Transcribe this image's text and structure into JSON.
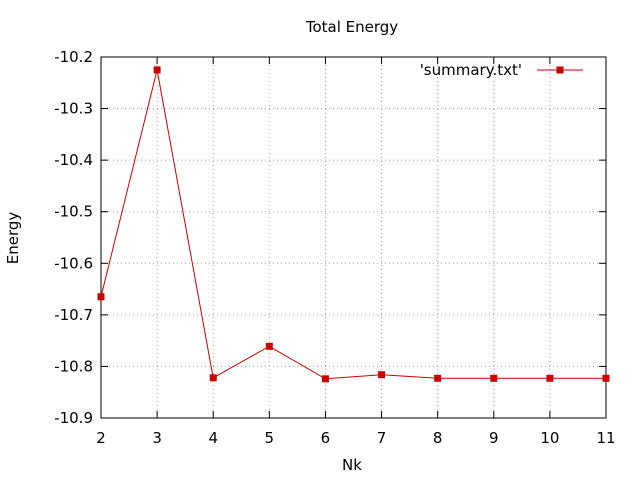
{
  "chart_data": {
    "type": "line",
    "title": "Total Energy",
    "xlabel": "Nk",
    "ylabel": "Energy",
    "xlim": [
      2,
      11
    ],
    "ylim": [
      -10.9,
      -10.2
    ],
    "xticks": [
      2,
      3,
      4,
      5,
      6,
      7,
      8,
      9,
      10,
      11
    ],
    "yticks": [
      -10.9,
      -10.8,
      -10.7,
      -10.6,
      -10.5,
      -10.4,
      -10.3,
      -10.2
    ],
    "grid": true,
    "legend_position": "top-right",
    "series": [
      {
        "name": "'summary.txt'",
        "color": "#cc0000",
        "marker": "square",
        "x": [
          2,
          3,
          4,
          5,
          6,
          7,
          8,
          9,
          10,
          11
        ],
        "y": [
          -10.665,
          -10.225,
          -10.822,
          -10.761,
          -10.824,
          -10.816,
          -10.823,
          -10.823,
          -10.823,
          -10.823
        ]
      }
    ]
  }
}
